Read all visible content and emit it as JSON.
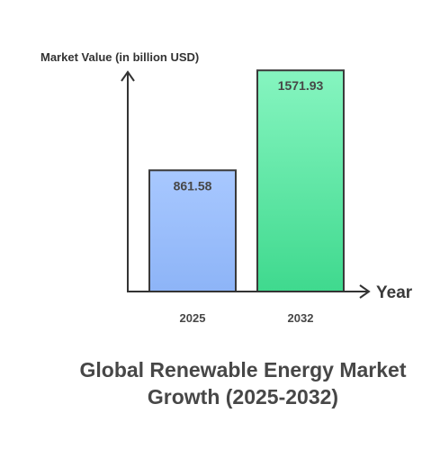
{
  "chart_data": {
    "type": "bar",
    "title_lines": [
      "Global Renewable Energy Market",
      "Growth (2025-2032)"
    ],
    "xlabel": "Year",
    "ylabel": "Market Value (in billion USD)",
    "categories": [
      "2025",
      "2032"
    ],
    "values": [
      861.58,
      1571.93
    ],
    "value_labels": [
      "861.58",
      "1571.93"
    ],
    "ylim": [
      0,
      1650
    ],
    "grid": false,
    "legend": "none",
    "colors": {
      "bar_2025_top": "#a8c8ff",
      "bar_2025_bottom": "#8db4f7",
      "bar_2032_top": "#86f5c0",
      "bar_2032_bottom": "#3fd98e",
      "bar_stroke": "#3a3a3a",
      "axis": "#333333",
      "text": "#474747"
    }
  }
}
